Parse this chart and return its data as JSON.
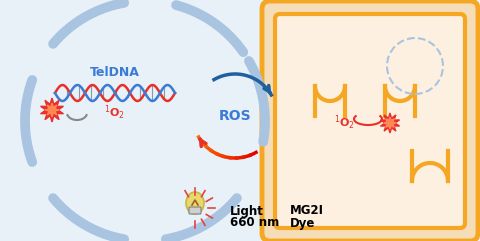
{
  "bg_color": "#e8f0f8",
  "cell_outer_color": "#f5ddb8",
  "cell_border_color": "#f5a623",
  "cell_inner_fill": "#fdf0e0",
  "dna_color1": "#e8302a",
  "dna_color2": "#3a7bd5",
  "burst_color": "#e8302a",
  "burst_inner": "#ff6633",
  "o2_color": "#e8302a",
  "ros_color": "#3a7bd5",
  "teldna_color": "#3a7bd5",
  "arc_dash_color": "#a8c4e0",
  "arrow_blue": "#2060a0",
  "arrow_red": "#e8302a",
  "arrow_orange": "#f5a623",
  "light_bulb_color": "#e8d870",
  "text_light": "Light",
  "text_nm": "660 nm",
  "text_mg2i": "MG2I",
  "text_dye": "Dye",
  "text_ros": "ROS",
  "text_teldna": "TelDNA",
  "text_1o2_left_super": "1",
  "text_1o2_left": "O",
  "text_1o2_left_sub": "2",
  "nucleus_border": "#a8c4e0",
  "smile_color": "#e8302a"
}
